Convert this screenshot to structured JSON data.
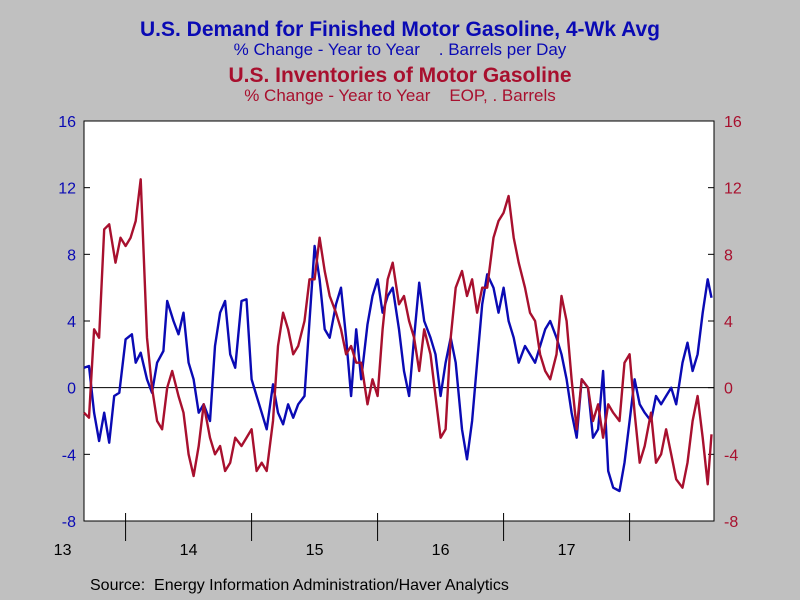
{
  "titles": {
    "demand_title": "U.S. Demand for Finished Motor Gasoline, 4-Wk Avg",
    "demand_subtitle": "% Change - Year to Year    . Barrels per Day",
    "inventory_title": "U.S. Inventories of Motor Gasoline",
    "inventory_subtitle": "% Change - Year to Year    EOP, . Barrels"
  },
  "source": "Source:  Energy Information Administration/Haver Analytics",
  "colors": {
    "demand": "#0a0ab4",
    "inventory": "#a8102e",
    "background": "#c0c0c0",
    "plot": "#ffffff"
  },
  "chart_data": {
    "type": "line",
    "x_tick_labels": [
      "13",
      "14",
      "15",
      "16",
      "17"
    ],
    "x_range": [
      2012.67,
      2017.67
    ],
    "y_left": {
      "ylim": [
        -8,
        16
      ],
      "ticks": [
        "-8",
        "-4",
        "0",
        "4",
        "8",
        "12",
        "16"
      ]
    },
    "y_right": {
      "ylim": [
        -8,
        16
      ],
      "ticks": [
        "-8",
        "-4",
        "0",
        "4",
        "8",
        "12",
        "16"
      ]
    },
    "zero_line": true,
    "grid": false,
    "series": [
      {
        "axis": "left",
        "x": [
          2012.67,
          2012.71,
          2012.75,
          2012.79,
          2012.83,
          2012.87,
          2012.91,
          2012.95,
          2013.0,
          2013.05,
          2013.08,
          2013.12,
          2013.17,
          2013.21,
          2013.25,
          2013.3,
          2013.33,
          2013.38,
          2013.42,
          2013.46,
          2013.5,
          2013.54,
          2013.58,
          2013.62,
          2013.67,
          2013.71,
          2013.75,
          2013.79,
          2013.83,
          2013.87,
          2013.92,
          2013.96,
          2014.0,
          2014.04,
          2014.08,
          2014.12,
          2014.17,
          2014.21,
          2014.25,
          2014.29,
          2014.33,
          2014.37,
          2014.42,
          2014.46,
          2014.5,
          2014.54,
          2014.58,
          2014.62,
          2014.67,
          2014.71,
          2014.75,
          2014.79,
          2014.83,
          2014.87,
          2014.92,
          2014.96,
          2015.0,
          2015.04,
          2015.08,
          2015.12,
          2015.17,
          2015.21,
          2015.25,
          2015.29,
          2015.33,
          2015.37,
          2015.42,
          2015.46,
          2015.5,
          2015.54,
          2015.58,
          2015.62,
          2015.67,
          2015.71,
          2015.75,
          2015.79,
          2015.83,
          2015.87,
          2015.92,
          2015.96,
          2016.0,
          2016.04,
          2016.08,
          2016.12,
          2016.17,
          2016.21,
          2016.25,
          2016.29,
          2016.33,
          2016.37,
          2016.42,
          2016.46,
          2016.5,
          2016.54,
          2016.58,
          2016.62,
          2016.67,
          2016.71,
          2016.75,
          2016.79,
          2016.83,
          2016.87,
          2016.92,
          2016.96,
          2017.0,
          2017.04,
          2017.08,
          2017.12,
          2017.17,
          2017.21,
          2017.25,
          2017.29,
          2017.33,
          2017.37,
          2017.42,
          2017.46,
          2017.5,
          2017.54,
          2017.58,
          2017.62,
          2017.65
        ],
        "values": [
          1.2,
          1.3,
          -1.5,
          -3.2,
          -1.5,
          -3.3,
          -0.5,
          -0.3,
          2.9,
          3.2,
          1.5,
          2.1,
          0.5,
          -0.3,
          1.5,
          2.2,
          5.2,
          4.0,
          3.2,
          4.5,
          1.5,
          0.5,
          -1.5,
          -1.0,
          -2.0,
          2.5,
          4.5,
          5.2,
          2.0,
          1.2,
          5.2,
          5.3,
          0.5,
          -0.5,
          -1.5,
          -2.5,
          0.2,
          -1.5,
          -2.2,
          -1.0,
          -1.8,
          -1.0,
          -0.5,
          4.0,
          8.5,
          6.5,
          3.5,
          3.0,
          5.0,
          6.0,
          3.0,
          -0.5,
          3.5,
          0.5,
          3.8,
          5.5,
          6.5,
          4.5,
          5.5,
          6.0,
          3.5,
          1.0,
          -0.5,
          3.0,
          6.3,
          4.0,
          3.0,
          2.0,
          -0.5,
          1.5,
          3.0,
          1.5,
          -2.5,
          -4.3,
          -2.0,
          1.5,
          5.0,
          6.8,
          6.0,
          4.5,
          6.0,
          4.0,
          3.0,
          1.5,
          2.5,
          2.0,
          1.5,
          2.5,
          3.5,
          4.0,
          3.0,
          2.0,
          0.5,
          -1.5,
          -3.0,
          0.5,
          0.0,
          -3.0,
          -2.5,
          1.0,
          -5.0,
          -6.0,
          -6.2,
          -4.5,
          -2.0,
          0.5,
          -1.0,
          -1.5,
          -2.0,
          -0.5,
          -1.0,
          -0.5,
          0.0,
          -1.0,
          1.5,
          2.7,
          1.0,
          2.0,
          4.5,
          6.5,
          5.4
        ],
        "name": ""
      },
      {
        "axis": "right",
        "x": [
          2012.67,
          2012.71,
          2012.75,
          2012.79,
          2012.83,
          2012.87,
          2012.92,
          2012.96,
          2013.0,
          2013.04,
          2013.08,
          2013.12,
          2013.17,
          2013.21,
          2013.25,
          2013.29,
          2013.33,
          2013.37,
          2013.42,
          2013.46,
          2013.5,
          2013.54,
          2013.58,
          2013.62,
          2013.67,
          2013.71,
          2013.75,
          2013.79,
          2013.83,
          2013.87,
          2013.92,
          2013.96,
          2014.0,
          2014.04,
          2014.08,
          2014.12,
          2014.17,
          2014.21,
          2014.25,
          2014.29,
          2014.33,
          2014.37,
          2014.42,
          2014.46,
          2014.5,
          2014.54,
          2014.58,
          2014.62,
          2014.67,
          2014.71,
          2014.75,
          2014.79,
          2014.83,
          2014.87,
          2014.92,
          2014.96,
          2015.0,
          2015.04,
          2015.08,
          2015.12,
          2015.17,
          2015.21,
          2015.25,
          2015.29,
          2015.33,
          2015.37,
          2015.42,
          2015.46,
          2015.5,
          2015.54,
          2015.58,
          2015.62,
          2015.67,
          2015.71,
          2015.75,
          2015.79,
          2015.83,
          2015.87,
          2015.92,
          2015.96,
          2016.0,
          2016.04,
          2016.08,
          2016.12,
          2016.17,
          2016.21,
          2016.25,
          2016.29,
          2016.33,
          2016.37,
          2016.42,
          2016.46,
          2016.5,
          2016.54,
          2016.58,
          2016.62,
          2016.67,
          2016.71,
          2016.75,
          2016.79,
          2016.83,
          2016.87,
          2016.92,
          2016.96,
          2017.0,
          2017.04,
          2017.08,
          2017.12,
          2017.17,
          2017.21,
          2017.25,
          2017.29,
          2017.33,
          2017.37,
          2017.42,
          2017.46,
          2017.5,
          2017.54,
          2017.58,
          2017.62,
          2017.65
        ],
        "values": [
          -1.5,
          -1.8,
          3.5,
          3.0,
          9.5,
          9.8,
          7.5,
          9.0,
          8.5,
          9.0,
          10.0,
          12.5,
          3.0,
          0.0,
          -2.0,
          -2.5,
          0.0,
          1.0,
          -0.5,
          -1.5,
          -4.0,
          -5.3,
          -3.5,
          -1.0,
          -3.0,
          -4.0,
          -3.5,
          -5.0,
          -4.5,
          -3.0,
          -3.5,
          -3.0,
          -2.5,
          -5.0,
          -4.5,
          -5.0,
          -2.0,
          2.5,
          4.5,
          3.5,
          2.0,
          2.5,
          4.0,
          6.5,
          6.5,
          9.0,
          7.0,
          5.5,
          4.5,
          3.5,
          2.0,
          2.5,
          1.5,
          1.5,
          -1.0,
          0.5,
          -0.5,
          3.5,
          6.5,
          7.5,
          5.0,
          5.5,
          4.0,
          3.0,
          1.0,
          3.5,
          2.0,
          -0.5,
          -3.0,
          -2.5,
          3.0,
          6.0,
          7.0,
          5.5,
          6.5,
          4.5,
          6.0,
          6.0,
          9.0,
          10.0,
          10.5,
          11.5,
          9.0,
          7.5,
          6.0,
          4.5,
          4.0,
          2.0,
          1.0,
          0.5,
          2.0,
          5.5,
          4.0,
          0.5,
          -2.5,
          0.5,
          0.0,
          -2.0,
          -1.0,
          -3.0,
          -1.0,
          -1.5,
          -2.0,
          1.5,
          2.0,
          -1.5,
          -4.5,
          -3.5,
          -1.5,
          -4.5,
          -4.0,
          -2.5,
          -4.0,
          -5.5,
          -6.0,
          -4.5,
          -2.0,
          -0.5,
          -3.0,
          -5.8,
          -2.8
        ],
        "name": ""
      }
    ],
    "x_tick_positions": [
      2013.0,
      2014.0,
      2015.0,
      2016.0,
      2017.0
    ],
    "x_label_positions": [
      2013.05,
      2014.05,
      2015.05,
      2016.05,
      2017.05
    ]
  }
}
